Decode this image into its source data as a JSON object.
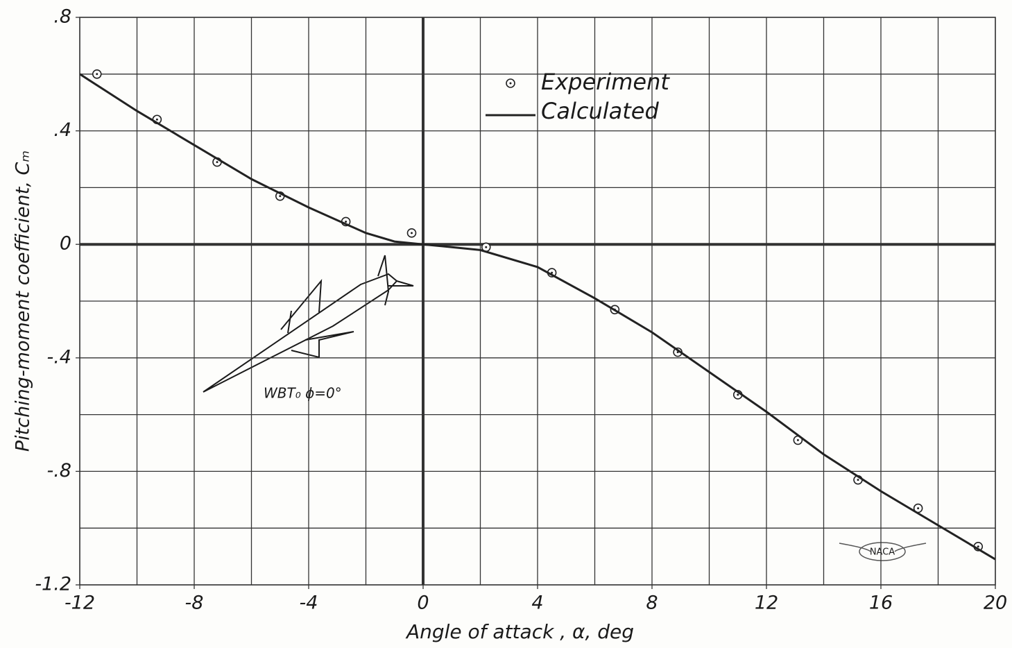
{
  "chart_data": {
    "type": "line",
    "xlabel": "Angle of attack , α, deg",
    "ylabel": "Pitching-moment coefficient, Cₘ",
    "xlim": [
      -12,
      20
    ],
    "ylim": [
      -1.2,
      0.8
    ],
    "xticks": [
      -12,
      -8,
      -4,
      0,
      4,
      8,
      12,
      16,
      20
    ],
    "yticks": [
      {
        "value": 0.8,
        "label": ".8"
      },
      {
        "value": 0.4,
        "label": ".4"
      },
      0,
      {
        "value": -0.4,
        "label": "-.4"
      },
      {
        "value": -0.8,
        "label": "-.8"
      },
      {
        "value": -1.2,
        "label": "-1.2"
      }
    ],
    "xgrid": [
      -12,
      -10,
      -8,
      -6,
      -4,
      -2,
      0,
      2,
      4,
      6,
      8,
      10,
      12,
      14,
      16,
      18,
      20
    ],
    "ygrid": [
      0.8,
      0.6,
      0.4,
      0.2,
      0,
      -0.2,
      -0.4,
      -0.6,
      -0.8,
      -1.0,
      -1.2
    ],
    "grid": true,
    "series": [
      {
        "name": "Experiment",
        "style": "markers",
        "color": "#222222",
        "x": [
          -11.4,
          -9.3,
          -7.2,
          -5.0,
          -2.7,
          -0.4,
          2.2,
          4.5,
          6.7,
          8.9,
          11.0,
          13.1,
          15.2,
          17.3,
          19.4
        ],
        "values": [
          0.6,
          0.44,
          0.29,
          0.17,
          0.08,
          0.04,
          -0.01,
          -0.1,
          -0.23,
          -0.38,
          -0.53,
          -0.69,
          -0.83,
          -0.93,
          -1.065
        ]
      },
      {
        "name": "Calculated",
        "style": "line",
        "color": "#222222",
        "x": [
          -12,
          -10,
          -8,
          -6,
          -4,
          -2,
          -1,
          0,
          2,
          4,
          6,
          8,
          10,
          12,
          14,
          16,
          18,
          20
        ],
        "values": [
          0.6,
          0.47,
          0.35,
          0.23,
          0.13,
          0.04,
          0.01,
          0,
          -0.02,
          -0.08,
          -0.19,
          -0.31,
          -0.45,
          -0.59,
          -0.74,
          -0.87,
          -0.99,
          -1.11
        ]
      }
    ],
    "annotations": [
      "WBT₀   ϕ=0°",
      "NACA"
    ]
  }
}
